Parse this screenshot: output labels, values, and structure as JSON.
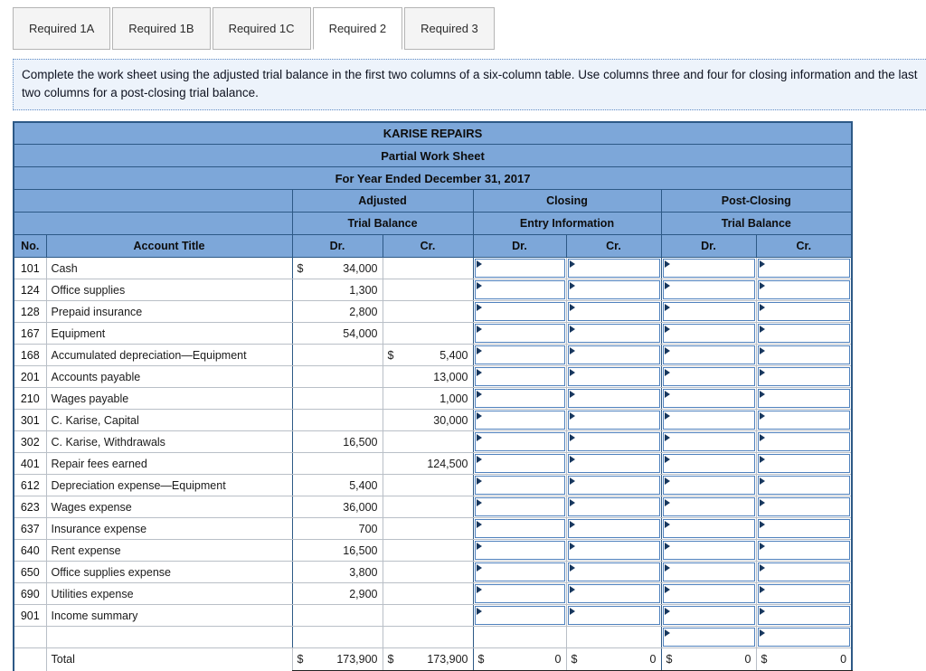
{
  "tabs": [
    {
      "label": "Required 1A",
      "active": false
    },
    {
      "label": "Required 1B",
      "active": false
    },
    {
      "label": "Required 1C",
      "active": false
    },
    {
      "label": "Required 2",
      "active": true
    },
    {
      "label": "Required 3",
      "active": false
    }
  ],
  "instructions": "Complete the work sheet using the adjusted trial balance in the first two columns of a six-column table. Use columns three and four for closing information and the last two columns for a post-closing trial balance.",
  "colors": {
    "header_blue": "#7da7d9",
    "border_dark": "#2d5986",
    "input_border": "#4f81bd",
    "instructions_bg": "#edf3fb"
  },
  "worksheet": {
    "title": "KARISE REPAIRS",
    "subtitle": "Partial Work Sheet",
    "period": "For Year Ended December 31, 2017",
    "column_groups": [
      {
        "line1": "Adjusted",
        "line2": "Trial Balance"
      },
      {
        "line1": "Closing",
        "line2": "Entry Information"
      },
      {
        "line1": "Post-Closing",
        "line2": "Trial Balance"
      }
    ],
    "headers": {
      "no": "No.",
      "account": "Account Title",
      "dr": "Dr.",
      "cr": "Cr."
    },
    "rows": [
      {
        "no": "101",
        "account": "Cash",
        "adj_dr_sym": "$",
        "adj_dr": "34,000",
        "adj_cr_sym": "",
        "adj_cr": "",
        "closing_inputs": true,
        "post_inputs": true
      },
      {
        "no": "124",
        "account": "Office supplies",
        "adj_dr_sym": "",
        "adj_dr": "1,300",
        "adj_cr_sym": "",
        "adj_cr": "",
        "closing_inputs": true,
        "post_inputs": true
      },
      {
        "no": "128",
        "account": "Prepaid insurance",
        "adj_dr_sym": "",
        "adj_dr": "2,800",
        "adj_cr_sym": "",
        "adj_cr": "",
        "closing_inputs": true,
        "post_inputs": true
      },
      {
        "no": "167",
        "account": "Equipment",
        "adj_dr_sym": "",
        "adj_dr": "54,000",
        "adj_cr_sym": "",
        "adj_cr": "",
        "closing_inputs": true,
        "post_inputs": true
      },
      {
        "no": "168",
        "account": "Accumulated depreciation—Equipment",
        "adj_dr_sym": "",
        "adj_dr": "",
        "adj_cr_sym": "$",
        "adj_cr": "5,400",
        "closing_inputs": true,
        "post_inputs": true
      },
      {
        "no": "201",
        "account": "Accounts payable",
        "adj_dr_sym": "",
        "adj_dr": "",
        "adj_cr_sym": "",
        "adj_cr": "13,000",
        "closing_inputs": true,
        "post_inputs": true
      },
      {
        "no": "210",
        "account": "Wages payable",
        "adj_dr_sym": "",
        "adj_dr": "",
        "adj_cr_sym": "",
        "adj_cr": "1,000",
        "closing_inputs": true,
        "post_inputs": true
      },
      {
        "no": "301",
        "account": "C. Karise, Capital",
        "adj_dr_sym": "",
        "adj_dr": "",
        "adj_cr_sym": "",
        "adj_cr": "30,000",
        "closing_inputs": true,
        "post_inputs": true
      },
      {
        "no": "302",
        "account": "C. Karise, Withdrawals",
        "adj_dr_sym": "",
        "adj_dr": "16,500",
        "adj_cr_sym": "",
        "adj_cr": "",
        "closing_inputs": true,
        "post_inputs": true
      },
      {
        "no": "401",
        "account": "Repair fees earned",
        "adj_dr_sym": "",
        "adj_dr": "",
        "adj_cr_sym": "",
        "adj_cr": "124,500",
        "closing_inputs": true,
        "post_inputs": true
      },
      {
        "no": "612",
        "account": "Depreciation expense—Equipment",
        "adj_dr_sym": "",
        "adj_dr": "5,400",
        "adj_cr_sym": "",
        "adj_cr": "",
        "closing_inputs": true,
        "post_inputs": true
      },
      {
        "no": "623",
        "account": "Wages expense",
        "adj_dr_sym": "",
        "adj_dr": "36,000",
        "adj_cr_sym": "",
        "adj_cr": "",
        "closing_inputs": true,
        "post_inputs": true
      },
      {
        "no": "637",
        "account": "Insurance expense",
        "adj_dr_sym": "",
        "adj_dr": "700",
        "adj_cr_sym": "",
        "adj_cr": "",
        "closing_inputs": true,
        "post_inputs": true
      },
      {
        "no": "640",
        "account": "Rent expense",
        "adj_dr_sym": "",
        "adj_dr": "16,500",
        "adj_cr_sym": "",
        "adj_cr": "",
        "closing_inputs": true,
        "post_inputs": true
      },
      {
        "no": "650",
        "account": "Office supplies expense",
        "adj_dr_sym": "",
        "adj_dr": "3,800",
        "adj_cr_sym": "",
        "adj_cr": "",
        "closing_inputs": true,
        "post_inputs": true
      },
      {
        "no": "690",
        "account": "Utilities expense",
        "adj_dr_sym": "",
        "adj_dr": "2,900",
        "adj_cr_sym": "",
        "adj_cr": "",
        "closing_inputs": true,
        "post_inputs": true
      },
      {
        "no": "901",
        "account": "Income summary",
        "adj_dr_sym": "",
        "adj_dr": "",
        "adj_cr_sym": "",
        "adj_cr": "",
        "closing_inputs": true,
        "post_inputs": true
      },
      {
        "no": "",
        "account": "",
        "adj_dr_sym": "",
        "adj_dr": "",
        "adj_cr_sym": "",
        "adj_cr": "",
        "closing_inputs": false,
        "post_inputs": true
      }
    ],
    "total": {
      "label": "Total",
      "sym": "$",
      "adj_dr": "173,900",
      "adj_cr": "173,900",
      "clo_dr": "0",
      "clo_cr": "0",
      "pc_dr": "0",
      "pc_cr": "0"
    }
  }
}
